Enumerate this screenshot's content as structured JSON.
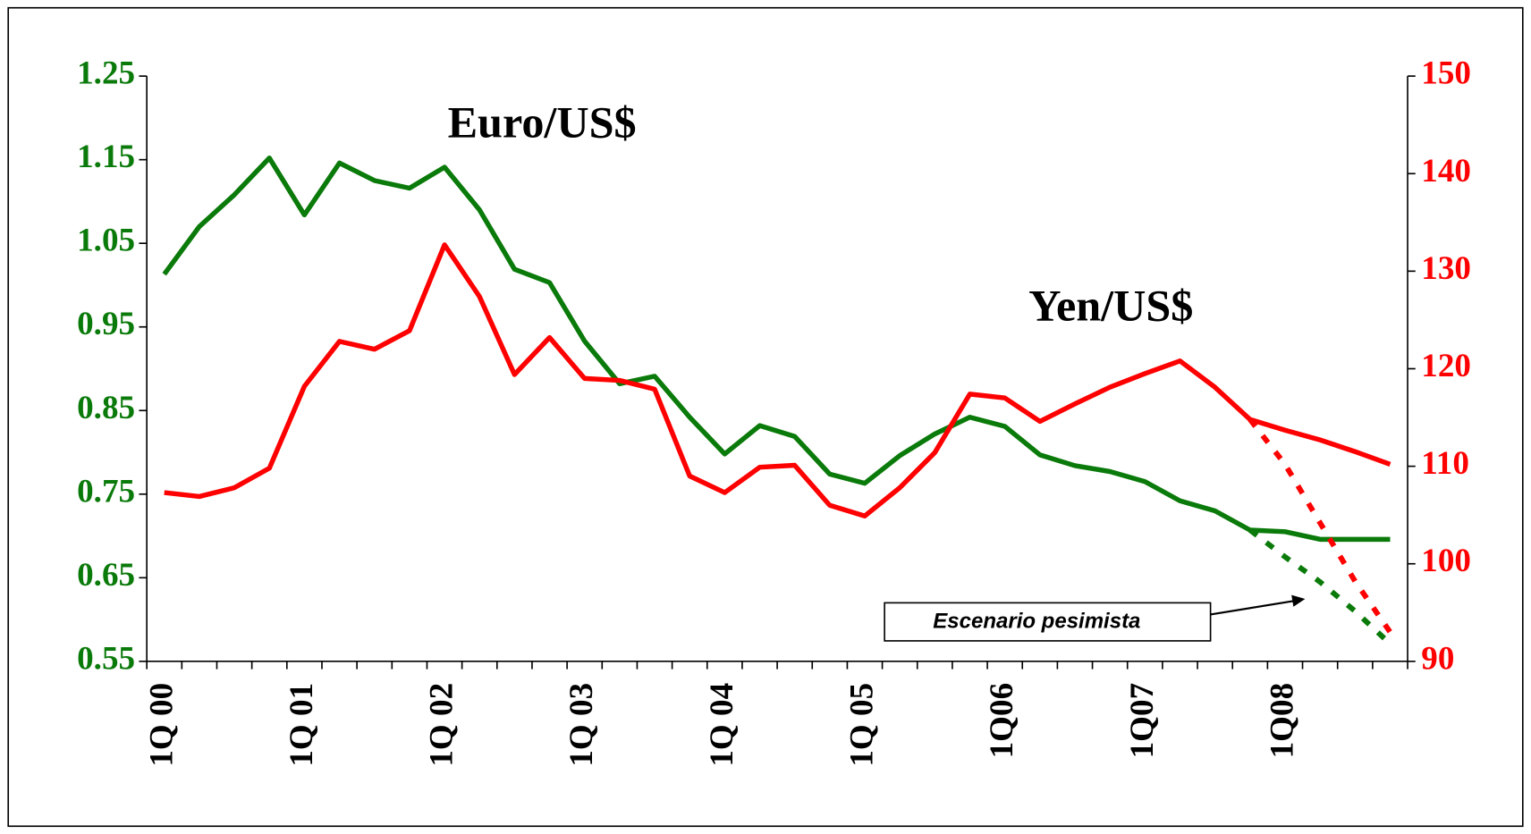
{
  "chart_data": {
    "type": "line",
    "categories": [
      "1Q 00",
      null,
      null,
      null,
      "1Q 01",
      null,
      null,
      null,
      "1Q 02",
      null,
      null,
      null,
      "1Q 03",
      null,
      null,
      null,
      "1Q 04",
      null,
      null,
      null,
      "1Q 05",
      null,
      null,
      null,
      "1Q06",
      null,
      null,
      null,
      "1Q07",
      null,
      null,
      null,
      "1Q08",
      null,
      null,
      null
    ],
    "series": [
      {
        "color": "#0a7a0a",
        "axis": "y",
        "dashed": false,
        "values": [
          1.013,
          1.07,
          1.108,
          1.152,
          1.084,
          1.146,
          1.125,
          1.116,
          1.141,
          1.09,
          1.019,
          1.003,
          0.933,
          0.882,
          0.891,
          0.842,
          0.798,
          0.832,
          0.819,
          0.774,
          0.763,
          0.796,
          0.822,
          0.842,
          0.831,
          0.797,
          0.784,
          0.777,
          0.765,
          0.742,
          0.73,
          0.707,
          0.705,
          0.696,
          0.696,
          0.696
        ]
      },
      {
        "color": "#0a7a0a",
        "axis": "y",
        "dashed": true,
        "values": [
          null,
          null,
          null,
          null,
          null,
          null,
          null,
          null,
          null,
          null,
          null,
          null,
          null,
          null,
          null,
          null,
          null,
          null,
          null,
          null,
          null,
          null,
          null,
          null,
          null,
          null,
          null,
          null,
          null,
          null,
          null,
          0.707,
          0.675,
          0.645,
          0.61,
          0.571
        ]
      },
      {
        "color": "#ff0000",
        "axis": "y2",
        "dashed": false,
        "values": [
          107.3,
          106.9,
          107.8,
          109.8,
          118.2,
          122.8,
          122.0,
          123.9,
          132.7,
          127.4,
          119.4,
          123.2,
          119.0,
          118.8,
          117.9,
          109.0,
          107.3,
          109.9,
          110.1,
          106.0,
          104.9,
          107.8,
          111.4,
          117.4,
          117.0,
          114.6,
          116.4,
          118.1,
          119.5,
          120.8,
          118.1,
          114.8,
          113.7,
          112.7,
          111.5,
          110.2
        ]
      },
      {
        "color": "#ff0000",
        "axis": "y2",
        "dashed": true,
        "values": [
          null,
          null,
          null,
          null,
          null,
          null,
          null,
          null,
          null,
          null,
          null,
          null,
          null,
          null,
          null,
          null,
          null,
          null,
          null,
          null,
          null,
          null,
          null,
          null,
          null,
          null,
          null,
          null,
          null,
          null,
          null,
          114.8,
          110.2,
          104.2,
          98.2,
          93.0
        ]
      }
    ],
    "ylim": [
      0.55,
      1.25
    ],
    "yticks": [
      0.55,
      0.65,
      0.75,
      0.85,
      0.95,
      1.05,
      1.15,
      1.25
    ],
    "ytick_color": "#0a7a0a",
    "y2lim": [
      90,
      150
    ],
    "y2ticks": [
      90,
      100,
      110,
      120,
      130,
      140,
      150
    ],
    "y2tick_color": "#ff0000",
    "annotations": [
      "Euro/US$",
      "Yen/US$",
      "Escenario pesimista"
    ]
  }
}
